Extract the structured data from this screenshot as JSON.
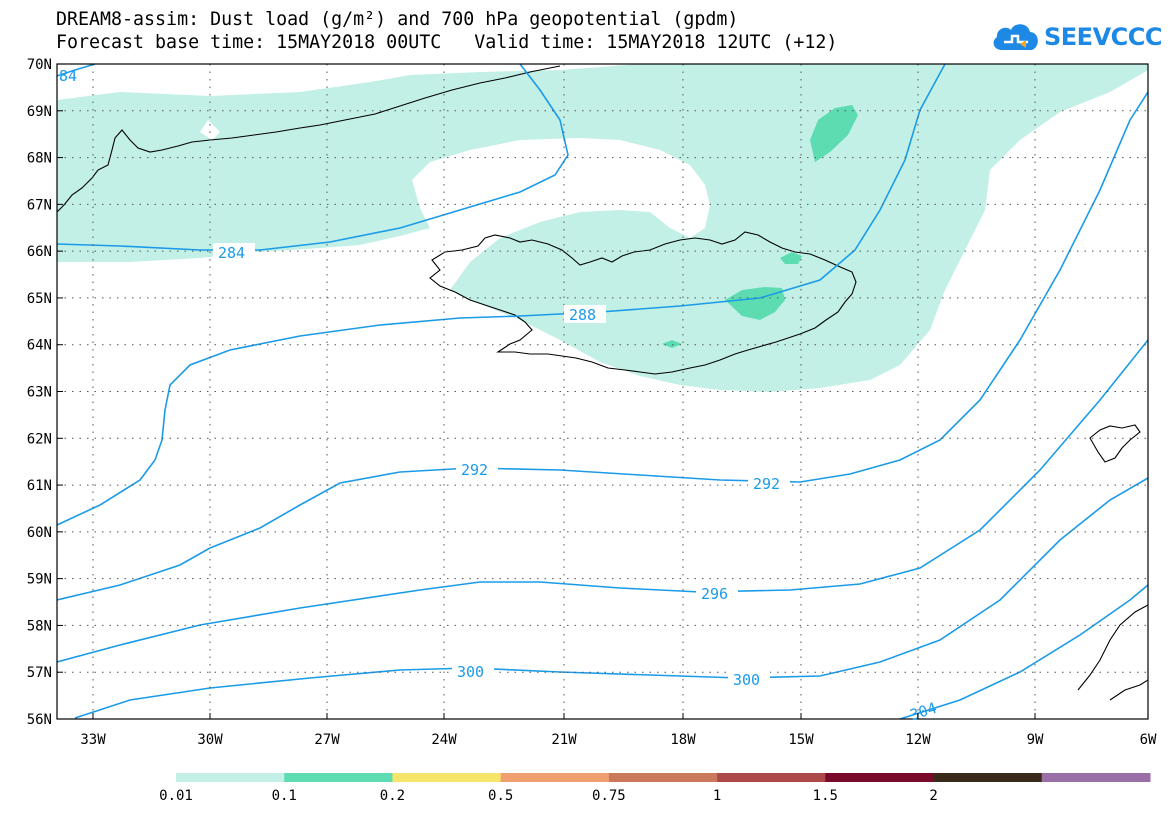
{
  "title": {
    "line1": "DREAM8-assim: Dust load (g/m²) and 700 hPa geopotential (gpdm)",
    "line2": "Forecast base time: 15MAY2018 00UTC   Valid time: 15MAY2018 12UTC (+12)"
  },
  "logo": {
    "text": "SEEVCCC",
    "icon": "cloud-icon",
    "color": "#1e88e5"
  },
  "map": {
    "lat_labels": [
      "70N",
      "69N",
      "68N",
      "67N",
      "66N",
      "65N",
      "64N",
      "63N",
      "62N",
      "61N",
      "60N",
      "59N",
      "58N",
      "57N",
      "56N"
    ],
    "lon_labels": [
      "33W",
      "30W",
      "27W",
      "24W",
      "21W",
      "18W",
      "15W",
      "12W",
      "9W",
      "6W"
    ],
    "contour_labels": [
      {
        "id": "284-partial",
        "text": "84"
      },
      {
        "id": "284",
        "text": "284"
      },
      {
        "id": "288",
        "text": "288"
      },
      {
        "id": "292-a",
        "text": "292"
      },
      {
        "id": "292-b",
        "text": "292"
      },
      {
        "id": "296",
        "text": "296"
      },
      {
        "id": "300-a",
        "text": "300"
      },
      {
        "id": "300-b",
        "text": "300"
      },
      {
        "id": "304",
        "text": "304"
      }
    ],
    "contour_color": "#1a9be8",
    "dust_light_color": "#c2f0e6",
    "dust_mid_color": "#5ddcb2"
  },
  "legend": {
    "colors": [
      "#c2f0e6",
      "#5ddcb2",
      "#f5e56b",
      "#f0a070",
      "#ca7a5a",
      "#ab4a48",
      "#7a0a2a",
      "#3a2a1a",
      "#9a6fa8"
    ],
    "labels": [
      "0.01",
      "0.1",
      "0.2",
      "0.5",
      "0.75",
      "1",
      "1.5",
      "2"
    ]
  }
}
